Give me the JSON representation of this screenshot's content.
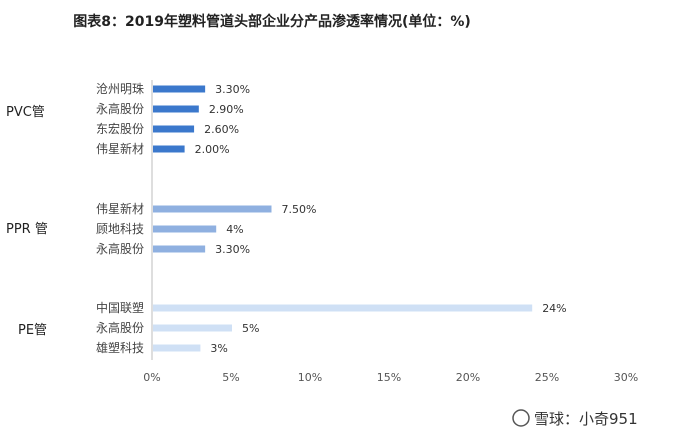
{
  "chart_data": {
    "type": "bar",
    "orientation": "horizontal",
    "title": "图表8：2019年塑料管道头部企业分产品渗透率情况(单位：%)",
    "xlim": [
      0,
      30
    ],
    "xticks": [
      "0%",
      "5%",
      "10%",
      "15%",
      "20%",
      "25%",
      "30%"
    ],
    "grid": false,
    "groups": [
      {
        "name": "PVC管",
        "color": "#3b78cc",
        "bars": [
          {
            "label": "沧州明珠",
            "value": 3.3,
            "value_label": "3.30%"
          },
          {
            "label": "永高股份",
            "value": 2.9,
            "value_label": "2.90%"
          },
          {
            "label": "东宏股份",
            "value": 2.6,
            "value_label": "2.60%"
          },
          {
            "label": "伟星新材",
            "value": 2.0,
            "value_label": "2.00%"
          }
        ]
      },
      {
        "name": "PPR 管",
        "color": "#8fb0e0",
        "bars": [
          {
            "label": "伟星新材",
            "value": 7.5,
            "value_label": "7.50%"
          },
          {
            "label": "顾地科技",
            "value": 4,
            "value_label": "4%"
          },
          {
            "label": "永高股份",
            "value": 3.3,
            "value_label": "3.30%"
          }
        ]
      },
      {
        "name": "PE管",
        "color": "#cfe0f5",
        "bars": [
          {
            "label": "中国联塑",
            "value": 24,
            "value_label": "24%"
          },
          {
            "label": "永高股份",
            "value": 5,
            "value_label": "5%"
          },
          {
            "label": "雄塑科技",
            "value": 3,
            "value_label": "3%"
          }
        ]
      }
    ]
  },
  "watermark": {
    "text": "雪球：小奇951"
  }
}
